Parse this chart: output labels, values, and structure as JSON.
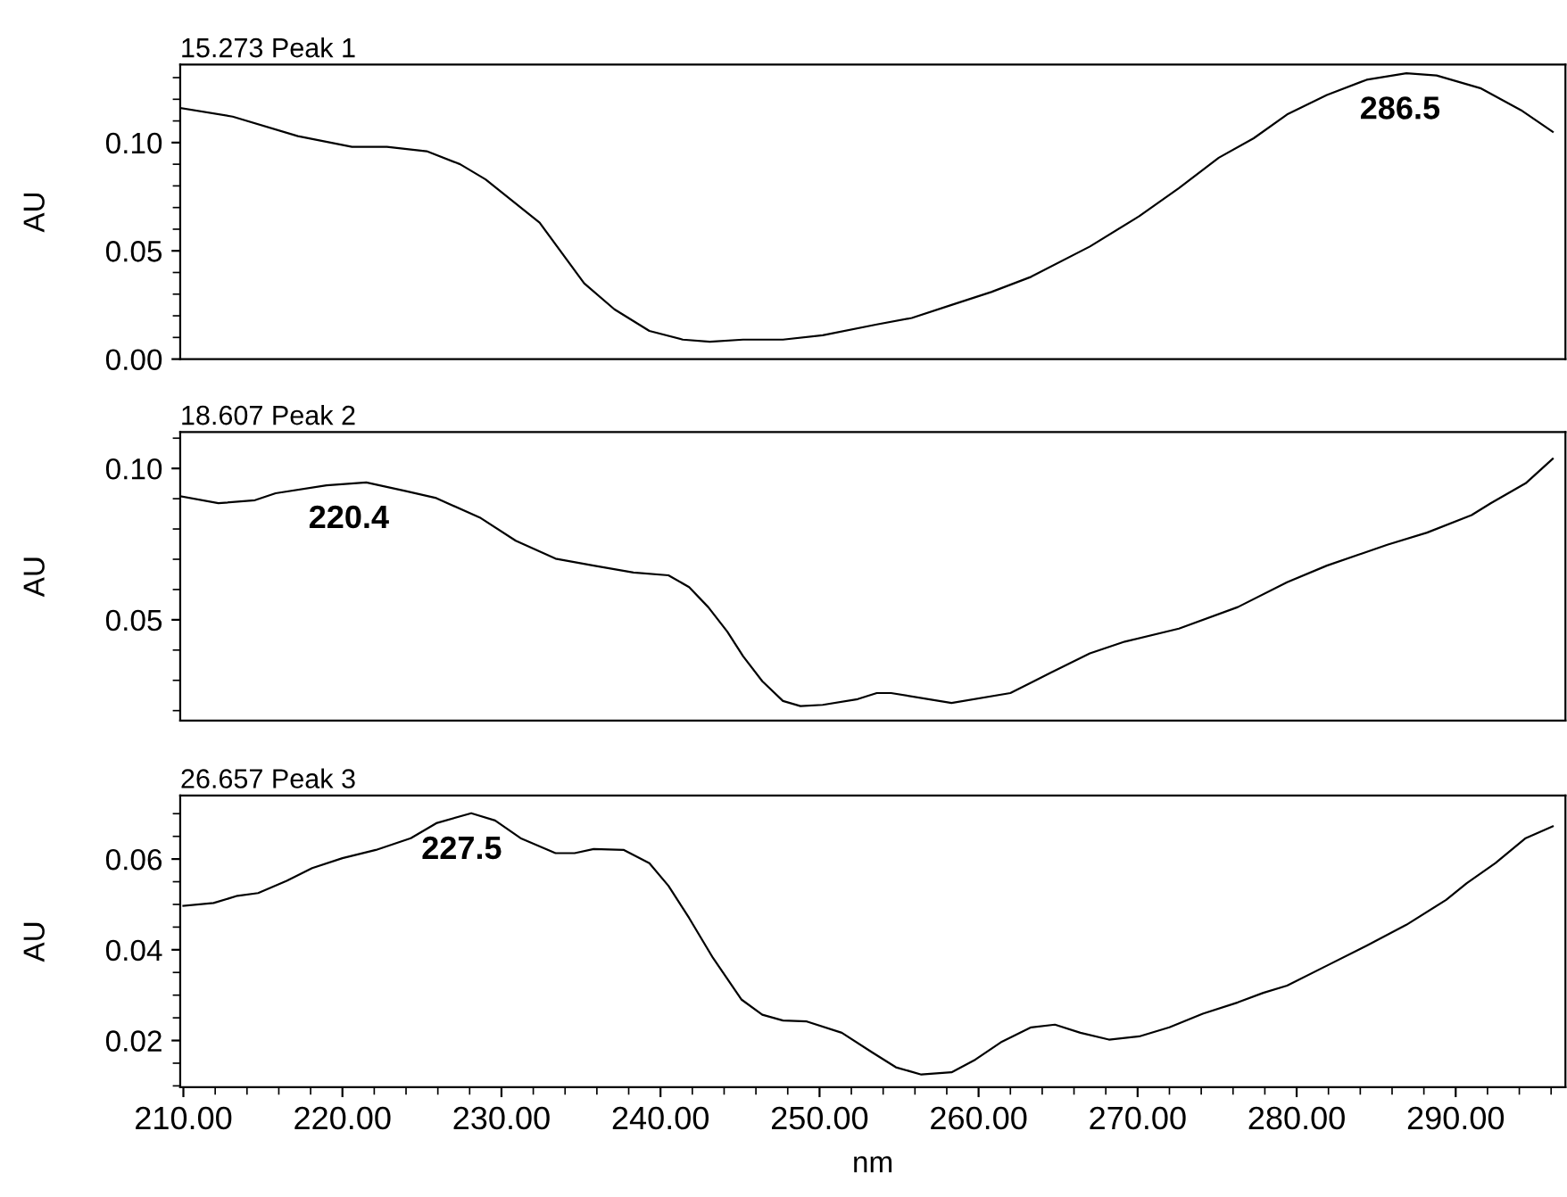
{
  "chart_data": [
    {
      "type": "line",
      "title": "15.273 Peak 1",
      "ylabel": "AU",
      "color": "#000000",
      "x": [
        209.8,
        213.1,
        217.2,
        220.6,
        222.8,
        225.3,
        227.4,
        229.0,
        232.4,
        235.2,
        237.1,
        239.3,
        241.4,
        243.1,
        245.2,
        247.7,
        250.2,
        253.6,
        255.8,
        258.3,
        260.8,
        263.3,
        267.0,
        270.1,
        272.6,
        275.1,
        277.3,
        279.4,
        281.9,
        284.4,
        286.9,
        288.8,
        291.6,
        294.1,
        296.1
      ],
      "values": [
        0.116,
        0.112,
        0.103,
        0.098,
        0.098,
        0.096,
        0.09,
        0.083,
        0.063,
        0.035,
        0.023,
        0.013,
        0.009,
        0.008,
        0.009,
        0.009,
        0.011,
        0.016,
        0.019,
        0.025,
        0.031,
        0.038,
        0.052,
        0.066,
        0.079,
        0.093,
        0.102,
        0.113,
        0.122,
        0.129,
        0.132,
        0.131,
        0.125,
        0.115,
        0.105
      ],
      "annotations": [
        {
          "text": "286.5",
          "x": 286.5,
          "y": 0.132
        }
      ],
      "xlim": [
        209.8,
        296.9
      ],
      "ylim": [
        0,
        0.136
      ],
      "yticks": [
        {
          "value": 0,
          "label": "0.00"
        },
        {
          "value": 0.05,
          "label": "0.05"
        },
        {
          "value": 0.1,
          "label": "0.10"
        }
      ],
      "tick_labels": "y",
      "grid": false,
      "legend": false
    },
    {
      "type": "line",
      "title": "18.607 Peak 2",
      "ylabel": "AU",
      "color": "#000000",
      "x": [
        209.8,
        212.2,
        214.5,
        215.8,
        219.0,
        221.5,
        224.0,
        225.9,
        228.7,
        230.9,
        233.4,
        235.8,
        238.3,
        240.5,
        241.8,
        243.0,
        244.2,
        245.2,
        246.4,
        247.7,
        248.8,
        250.2,
        252.4,
        253.6,
        254.5,
        258.3,
        262.0,
        264.5,
        267.0,
        269.2,
        272.6,
        276.3,
        279.4,
        281.9,
        285.7,
        288.2,
        291.0,
        292.2,
        294.4,
        296.1
      ],
      "values": [
        0.0908,
        0.0885,
        0.0895,
        0.0918,
        0.0944,
        0.0954,
        0.0925,
        0.0902,
        0.0836,
        0.0761,
        0.0702,
        0.0679,
        0.0656,
        0.0647,
        0.0608,
        0.0542,
        0.0461,
        0.0379,
        0.0297,
        0.0232,
        0.0215,
        0.0219,
        0.0238,
        0.0258,
        0.0258,
        0.0225,
        0.0258,
        0.0324,
        0.0389,
        0.0428,
        0.0471,
        0.0542,
        0.0624,
        0.0679,
        0.0748,
        0.0788,
        0.0846,
        0.0885,
        0.0951,
        0.1032
      ],
      "annotations": [
        {
          "text": "220.4",
          "x": 220.4,
          "y": 0.0954
        }
      ],
      "xlim": [
        209.8,
        296.9
      ],
      "ylim": [
        0.0167,
        0.112
      ],
      "yticks": [
        {
          "value": 0.05,
          "label": "0.05"
        },
        {
          "value": 0.1,
          "label": "0.10"
        }
      ],
      "tick_labels": "y",
      "grid": false,
      "legend": false
    },
    {
      "type": "line",
      "title": "26.657 Peak 3",
      "ylabel": "AU",
      "xlabel": "nm",
      "color": "#000000",
      "x": [
        210.0,
        211.9,
        213.4,
        214.7,
        216.5,
        218.1,
        220.0,
        222.1,
        224.3,
        225.9,
        228.1,
        229.6,
        231.2,
        233.4,
        234.6,
        235.8,
        237.7,
        239.3,
        240.5,
        241.8,
        243.3,
        245.1,
        246.4,
        247.7,
        249.2,
        251.4,
        253.3,
        254.8,
        256.4,
        258.3,
        259.8,
        261.4,
        263.3,
        264.8,
        266.4,
        268.2,
        270.1,
        272.0,
        274.1,
        276.3,
        277.9,
        279.4,
        281.9,
        284.4,
        286.9,
        289.4,
        290.7,
        292.5,
        294.4,
        296.1
      ],
      "values": [
        0.0497,
        0.0503,
        0.0519,
        0.0525,
        0.0552,
        0.058,
        0.0602,
        0.062,
        0.0646,
        0.0679,
        0.0701,
        0.0685,
        0.0646,
        0.0613,
        0.0613,
        0.0622,
        0.062,
        0.0591,
        0.0541,
        0.047,
        0.0382,
        0.029,
        0.0257,
        0.0244,
        0.0242,
        0.0217,
        0.0174,
        0.0141,
        0.0125,
        0.013,
        0.0158,
        0.0196,
        0.0229,
        0.0235,
        0.0217,
        0.0202,
        0.0209,
        0.0229,
        0.0259,
        0.0284,
        0.0305,
        0.0321,
        0.0365,
        0.0409,
        0.0455,
        0.051,
        0.0547,
        0.0591,
        0.0646,
        0.0672
      ],
      "annotations": [
        {
          "text": "227.5",
          "x": 227.5,
          "y": 0.0701
        }
      ],
      "xlim": [
        209.8,
        296.9
      ],
      "ylim": [
        0.0097,
        0.074
      ],
      "xticks": [
        {
          "value": 210,
          "label": "210.00"
        },
        {
          "value": 220,
          "label": "220.00"
        },
        {
          "value": 230,
          "label": "230.00"
        },
        {
          "value": 240,
          "label": "240.00"
        },
        {
          "value": 250,
          "label": "250.00"
        },
        {
          "value": 260,
          "label": "260.00"
        },
        {
          "value": 270,
          "label": "270.00"
        },
        {
          "value": 280,
          "label": "280.00"
        },
        {
          "value": 290,
          "label": "290.00"
        }
      ],
      "yticks": [
        {
          "value": 0.02,
          "label": "0.02"
        },
        {
          "value": 0.04,
          "label": "0.04"
        },
        {
          "value": 0.06,
          "label": "0.06"
        }
      ],
      "grid": false,
      "legend": false
    }
  ]
}
